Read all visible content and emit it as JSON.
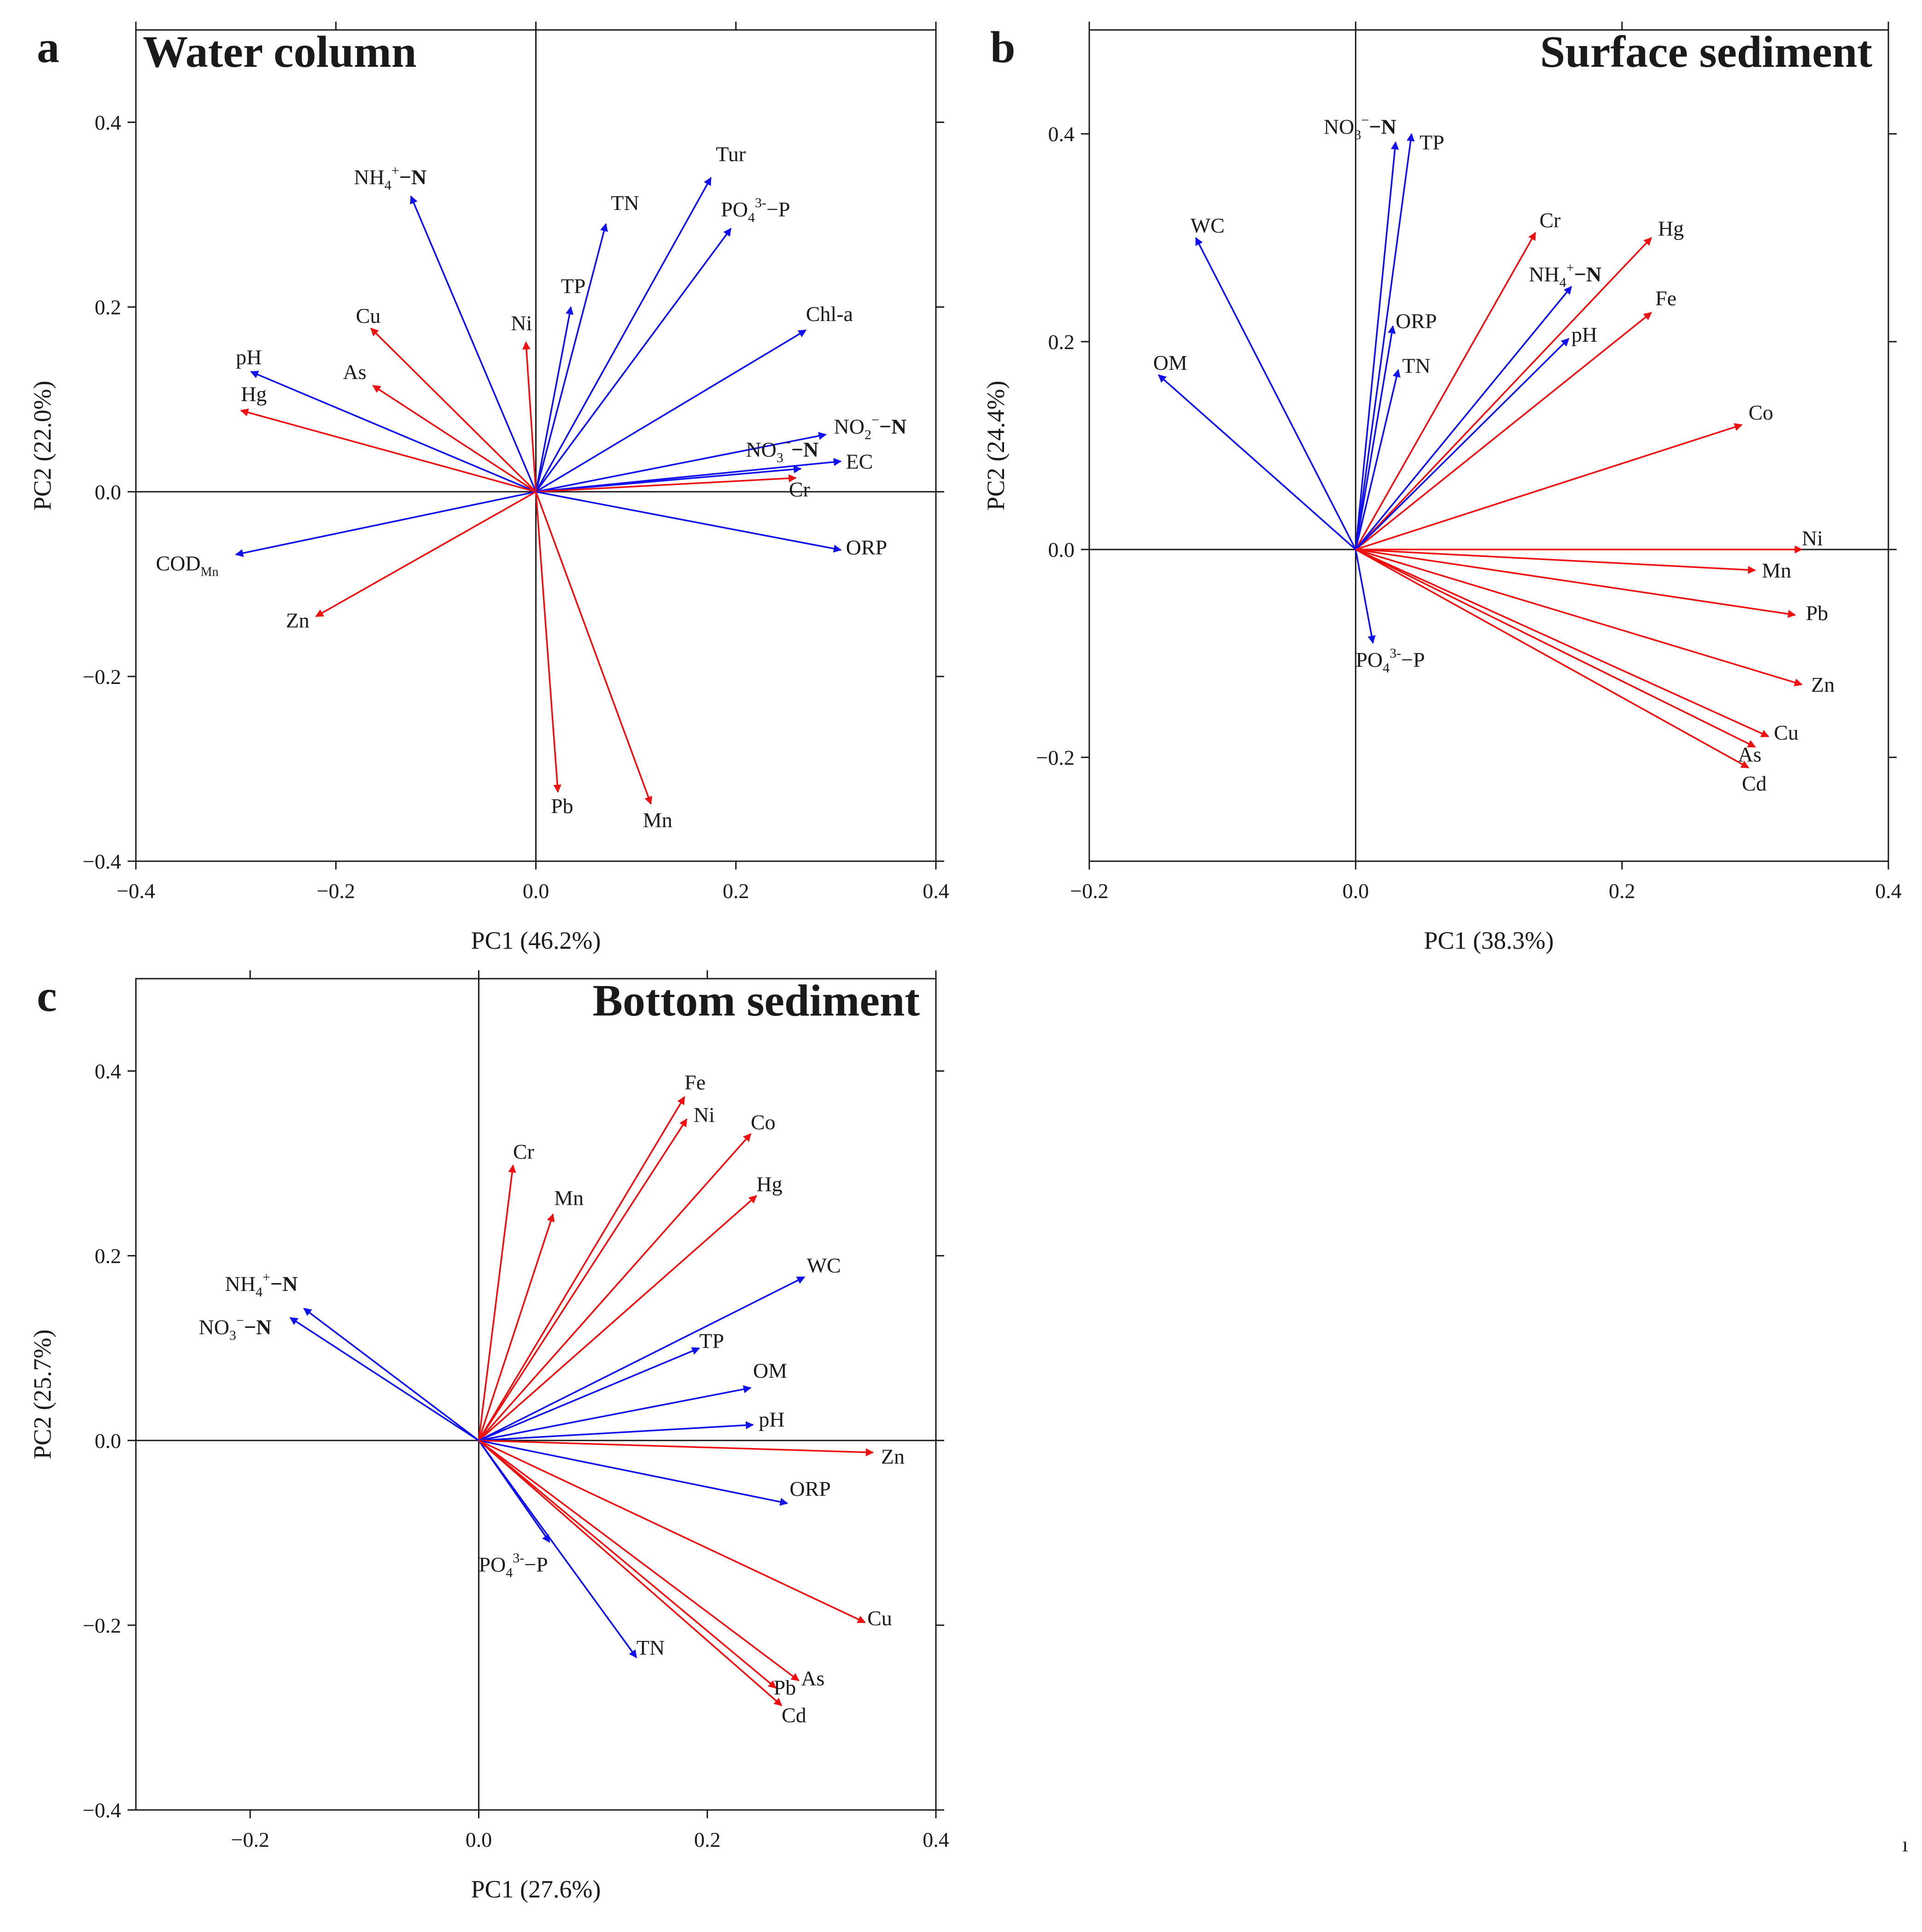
{
  "chart_data": [
    {
      "type": "scatter",
      "panel_label": "a",
      "title": "Water column",
      "title_align": "left",
      "xlabel": "PC1 (46.2%)",
      "ylabel": "PC2 (22.0%)",
      "xlim": [
        -0.4,
        0.4
      ],
      "ylim": [
        -0.4,
        0.5
      ],
      "xticks": [
        -0.4,
        -0.2,
        0.0,
        0.2,
        0.4
      ],
      "yticks": [
        -0.4,
        -0.2,
        0.0,
        0.2,
        0.4
      ],
      "xtick_labels": [
        "−0.4",
        "−0.2",
        "0.0",
        "0.2",
        "0.4"
      ],
      "ytick_labels": [
        "−0.4",
        "−0.2",
        "0.0",
        "0.2",
        "0.4"
      ],
      "colors": {
        "blue": "#1010ee",
        "red": "#ee1010"
      },
      "vectors": [
        {
          "name": "NH4+-N",
          "html": "NH<tspan class='sub' dy='12' font-size='30'>4</tspan><tspan dy='-32' font-size='30'>+</tspan><tspan dy='20' font-weight='bold'>−N</tspan>",
          "x": -0.125,
          "y": 0.32,
          "color": "blue",
          "lx": -0.182,
          "ly": 0.333
        },
        {
          "name": "Tur",
          "x": 0.175,
          "y": 0.34,
          "color": "blue",
          "lx": 0.18,
          "ly": 0.358
        },
        {
          "name": "TN",
          "x": 0.07,
          "y": 0.29,
          "color": "blue",
          "lx": 0.075,
          "ly": 0.305
        },
        {
          "name": "PO43--P",
          "html": "PO<tspan dy='12' font-size='30'>4</tspan><tspan dy='-32' font-size='30'>3-</tspan><tspan dy='20'>−P</tspan>",
          "x": 0.195,
          "y": 0.285,
          "color": "blue",
          "lx": 0.185,
          "ly": 0.298
        },
        {
          "name": "TP",
          "x": 0.035,
          "y": 0.2,
          "color": "blue",
          "lx": 0.025,
          "ly": 0.215
        },
        {
          "name": "Chl-a",
          "x": 0.27,
          "y": 0.175,
          "color": "blue",
          "lx": 0.27,
          "ly": 0.185
        },
        {
          "name": "Ni",
          "x": -0.01,
          "y": 0.162,
          "color": "red",
          "lx": -0.025,
          "ly": 0.175
        },
        {
          "name": "Cu",
          "x": -0.165,
          "y": 0.177,
          "color": "red",
          "lx": -0.18,
          "ly": 0.183
        },
        {
          "name": "pH",
          "x": -0.285,
          "y": 0.13,
          "color": "blue",
          "lx": -0.3,
          "ly": 0.138
        },
        {
          "name": "As",
          "x": -0.163,
          "y": 0.115,
          "color": "red",
          "lx": -0.193,
          "ly": 0.122
        },
        {
          "name": "Hg",
          "x": -0.295,
          "y": 0.088,
          "color": "red",
          "lx": -0.295,
          "ly": 0.098
        },
        {
          "name": "NO2--N",
          "html": "NO<tspan dy='12' font-size='30'>2</tspan><tspan dy='-32' font-size='30'>−</tspan><tspan dy='20' font-weight='bold'>−N</tspan>",
          "x": 0.29,
          "y": 0.062,
          "color": "blue",
          "lx": 0.298,
          "ly": 0.063
        },
        {
          "name": "NO3--N",
          "html": "NO<tspan dy='12' font-size='30'>3</tspan><tspan dy='-32' font-size='30'>−</tspan><tspan dy='20' font-weight='bold'>−N</tspan>",
          "x": 0.265,
          "y": 0.025,
          "color": "blue",
          "lx": 0.21,
          "ly": 0.038
        },
        {
          "name": "EC",
          "x": 0.305,
          "y": 0.033,
          "color": "blue",
          "lx": 0.31,
          "ly": 0.025
        },
        {
          "name": "Cr",
          "x": 0.26,
          "y": 0.015,
          "color": "red",
          "lx": 0.253,
          "ly": -0.005
        },
        {
          "name": "ORP",
          "x": 0.305,
          "y": -0.063,
          "color": "blue",
          "lx": 0.31,
          "ly": -0.068
        },
        {
          "name": "CODMn",
          "html": "COD<tspan dy='12' font-size='28'>Mn</tspan>",
          "x": -0.3,
          "y": -0.068,
          "color": "blue",
          "lx": -0.38,
          "ly": -0.085
        },
        {
          "name": "Zn",
          "x": -0.22,
          "y": -0.135,
          "color": "red",
          "lx": -0.25,
          "ly": -0.147
        },
        {
          "name": "Pb",
          "x": 0.022,
          "y": -0.325,
          "color": "red",
          "lx": 0.015,
          "ly": -0.348
        },
        {
          "name": "Mn",
          "x": 0.115,
          "y": -0.338,
          "color": "red",
          "lx": 0.107,
          "ly": -0.363
        }
      ]
    },
    {
      "type": "scatter",
      "panel_label": "b",
      "title": "Surface sediment",
      "title_align": "right",
      "xlabel": "PC1 (38.3%)",
      "ylabel": "PC2 (24.4%)",
      "xlim": [
        -0.2,
        0.4
      ],
      "ylim": [
        -0.3,
        0.5
      ],
      "xticks": [
        -0.2,
        0.0,
        0.2,
        0.4
      ],
      "yticks": [
        -0.2,
        0.0,
        0.2,
        0.4
      ],
      "xtick_labels": [
        "−0.2",
        "0.0",
        "0.2",
        "0.4"
      ],
      "ytick_labels": [
        "−0.2",
        "0.0",
        "0.2",
        "0.4"
      ],
      "colors": {
        "blue": "#1010ee",
        "red": "#ee1010"
      },
      "vectors": [
        {
          "name": "NO3--N",
          "html": "NO<tspan dy='12' font-size='30'>3</tspan><tspan dy='-32' font-size='30'>−</tspan><tspan dy='20' font-weight='bold'>−N</tspan>",
          "x": 0.03,
          "y": 0.392,
          "color": "blue",
          "lx": -0.024,
          "ly": 0.4
        },
        {
          "name": "TP",
          "x": 0.042,
          "y": 0.4,
          "color": "blue",
          "lx": 0.048,
          "ly": 0.385
        },
        {
          "name": "WC",
          "x": -0.12,
          "y": 0.3,
          "color": "blue",
          "lx": -0.124,
          "ly": 0.305
        },
        {
          "name": "Cr",
          "x": 0.135,
          "y": 0.305,
          "color": "red",
          "lx": 0.138,
          "ly": 0.31
        },
        {
          "name": "Hg",
          "x": 0.222,
          "y": 0.3,
          "color": "red",
          "lx": 0.227,
          "ly": 0.302
        },
        {
          "name": "NH4+-N",
          "html": "NH<tspan dy='12' font-size='30'>4</tspan><tspan dy='-32' font-size='30'>+</tspan><tspan dy='20' font-weight='bold'>−N</tspan>",
          "x": 0.162,
          "y": 0.253,
          "color": "blue",
          "lx": 0.13,
          "ly": 0.258
        },
        {
          "name": "Fe",
          "x": 0.222,
          "y": 0.228,
          "color": "red",
          "lx": 0.225,
          "ly": 0.235
        },
        {
          "name": "ORP",
          "x": 0.028,
          "y": 0.215,
          "color": "blue",
          "lx": 0.03,
          "ly": 0.213
        },
        {
          "name": "pH",
          "x": 0.16,
          "y": 0.203,
          "color": "blue",
          "lx": 0.162,
          "ly": 0.2
        },
        {
          "name": "TN",
          "x": 0.032,
          "y": 0.173,
          "color": "blue",
          "lx": 0.035,
          "ly": 0.17
        },
        {
          "name": "OM",
          "x": -0.148,
          "y": 0.168,
          "color": "blue",
          "lx": -0.152,
          "ly": 0.173
        },
        {
          "name": "Co",
          "x": 0.29,
          "y": 0.12,
          "color": "red",
          "lx": 0.295,
          "ly": 0.125
        },
        {
          "name": "Ni",
          "x": 0.335,
          "y": 0.0,
          "color": "red",
          "lx": 0.335,
          "ly": 0.004
        },
        {
          "name": "Mn",
          "x": 0.3,
          "y": -0.02,
          "color": "red",
          "lx": 0.305,
          "ly": -0.027
        },
        {
          "name": "Pb",
          "x": 0.33,
          "y": -0.063,
          "color": "red",
          "lx": 0.338,
          "ly": -0.068
        },
        {
          "name": "PO43--P",
          "html": "PO<tspan dy='12' font-size='30'>4</tspan><tspan dy='-32' font-size='30'>3-</tspan><tspan dy='20'>−P</tspan>",
          "x": 0.013,
          "y": -0.09,
          "color": "blue",
          "lx": 0.0,
          "ly": -0.113
        },
        {
          "name": "Zn",
          "x": 0.335,
          "y": -0.13,
          "color": "red",
          "lx": 0.342,
          "ly": -0.137
        },
        {
          "name": "Cu",
          "x": 0.31,
          "y": -0.18,
          "color": "red",
          "lx": 0.314,
          "ly": -0.183
        },
        {
          "name": "As",
          "x": 0.3,
          "y": -0.19,
          "color": "red",
          "lx": 0.287,
          "ly": -0.204
        },
        {
          "name": "Cd",
          "x": 0.295,
          "y": -0.21,
          "color": "red",
          "lx": 0.29,
          "ly": -0.232
        }
      ]
    },
    {
      "type": "scatter",
      "panel_label": "c",
      "title": "Bottom sediment",
      "title_align": "right",
      "xlabel": "PC1 (27.6%)",
      "ylabel": "PC2 (25.7%)",
      "xlim": [
        -0.3,
        0.4
      ],
      "ylim": [
        -0.4,
        0.5
      ],
      "xticks": [
        -0.2,
        0.0,
        0.2,
        0.4
      ],
      "yticks": [
        -0.4,
        -0.2,
        0.0,
        0.2,
        0.4
      ],
      "xtick_labels": [
        "−0.2",
        "0.0",
        "0.2",
        "0.4"
      ],
      "ytick_labels": [
        "−0.4",
        "−0.2",
        "0.0",
        "0.2",
        "0.4"
      ],
      "colors": {
        "blue": "#1010ee",
        "red": "#ee1010"
      },
      "vectors": [
        {
          "name": "Fe",
          "x": 0.18,
          "y": 0.372,
          "color": "red",
          "lx": 0.18,
          "ly": 0.38
        },
        {
          "name": "Ni",
          "x": 0.182,
          "y": 0.348,
          "color": "red",
          "lx": 0.188,
          "ly": 0.345
        },
        {
          "name": "Co",
          "x": 0.238,
          "y": 0.332,
          "color": "red",
          "lx": 0.238,
          "ly": 0.337
        },
        {
          "name": "Cr",
          "x": 0.03,
          "y": 0.298,
          "color": "red",
          "lx": 0.03,
          "ly": 0.305
        },
        {
          "name": "Hg",
          "x": 0.243,
          "y": 0.265,
          "color": "red",
          "lx": 0.243,
          "ly": 0.27
        },
        {
          "name": "Mn",
          "x": 0.065,
          "y": 0.245,
          "color": "red",
          "lx": 0.066,
          "ly": 0.255
        },
        {
          "name": "WC",
          "x": 0.285,
          "y": 0.177,
          "color": "blue",
          "lx": 0.287,
          "ly": 0.182
        },
        {
          "name": "NH4+-N",
          "html": "NH<tspan dy='12' font-size='30'>4</tspan><tspan dy='-32' font-size='30'>+</tspan><tspan dy='20' font-weight='bold'>−N</tspan>",
          "x": -0.153,
          "y": 0.143,
          "color": "blue",
          "lx": -0.222,
          "ly": 0.162
        },
        {
          "name": "NO3--N",
          "html": "NO<tspan dy='12' font-size='30'>3</tspan><tspan dy='-32' font-size='30'>−</tspan><tspan dy='20' font-weight='bold'>−N</tspan>",
          "x": -0.165,
          "y": 0.133,
          "color": "blue",
          "lx": -0.245,
          "ly": 0.115
        },
        {
          "name": "TP",
          "x": 0.193,
          "y": 0.1,
          "color": "blue",
          "lx": 0.193,
          "ly": 0.1
        },
        {
          "name": "OM",
          "x": 0.238,
          "y": 0.057,
          "color": "blue",
          "lx": 0.24,
          "ly": 0.068
        },
        {
          "name": "pH",
          "x": 0.24,
          "y": 0.017,
          "color": "blue",
          "lx": 0.245,
          "ly": 0.015
        },
        {
          "name": "Zn",
          "x": 0.345,
          "y": -0.013,
          "color": "red",
          "lx": 0.352,
          "ly": -0.025
        },
        {
          "name": "ORP",
          "x": 0.27,
          "y": -0.068,
          "color": "blue",
          "lx": 0.272,
          "ly": -0.06
        },
        {
          "name": "PO43--P",
          "html": "PO<tspan dy='12' font-size='30'>4</tspan><tspan dy='-32' font-size='30'>3-</tspan><tspan dy='20'>−P</tspan>",
          "x": 0.062,
          "y": -0.11,
          "color": "blue",
          "lx": 0.0,
          "ly": -0.142
        },
        {
          "name": "Cu",
          "x": 0.338,
          "y": -0.197,
          "color": "red",
          "lx": 0.34,
          "ly": -0.2
        },
        {
          "name": "TN",
          "x": 0.138,
          "y": -0.235,
          "color": "blue",
          "lx": 0.138,
          "ly": -0.232
        },
        {
          "name": "As",
          "x": 0.28,
          "y": -0.26,
          "color": "red",
          "lx": 0.282,
          "ly": -0.265
        },
        {
          "name": "Pb",
          "x": 0.26,
          "y": -0.268,
          "color": "red",
          "lx": 0.258,
          "ly": -0.275
        },
        {
          "name": "Cd",
          "x": 0.265,
          "y": -0.287,
          "color": "red",
          "lx": 0.265,
          "ly": -0.305
        }
      ]
    }
  ]
}
